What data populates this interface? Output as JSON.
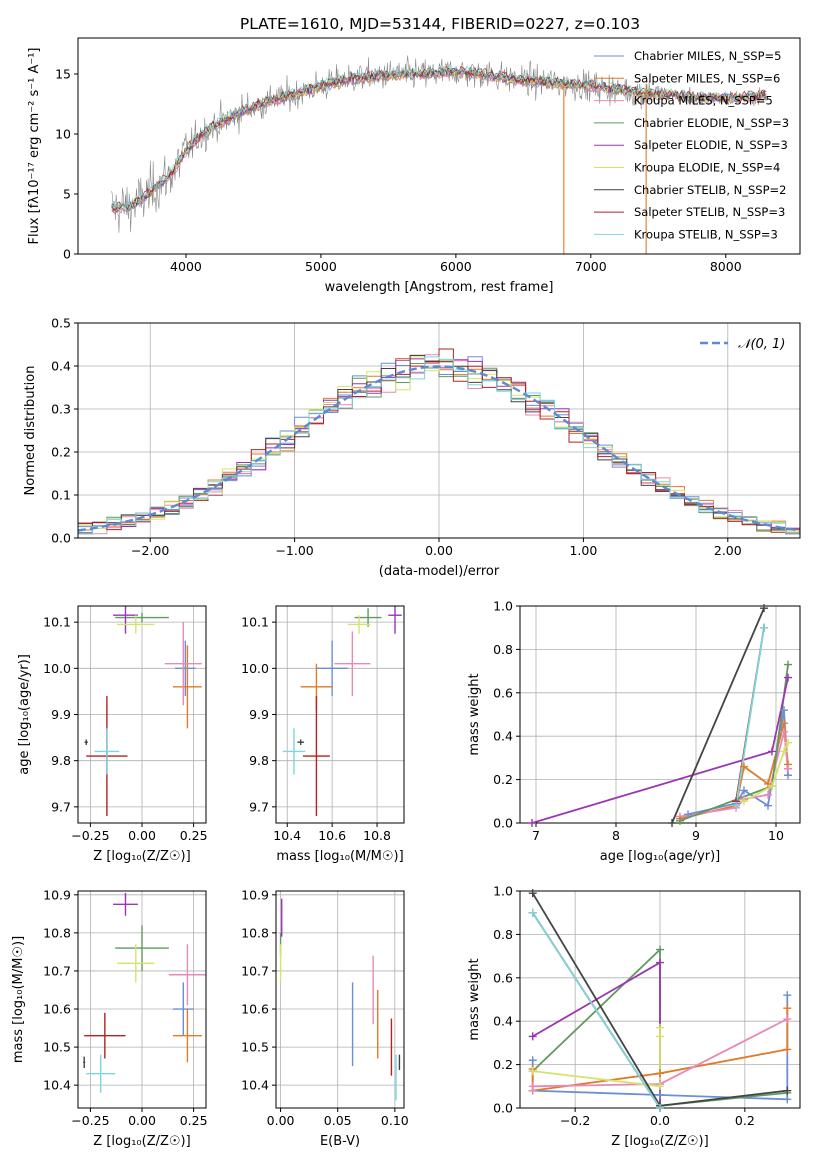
{
  "figure": {
    "title": "PLATE=1610, MJD=53144, FIBERID=0227, z=0.103"
  },
  "colors": {
    "chabrier_miles": "#6a8fd8",
    "salpeter_miles": "#e07b27",
    "kroupa_miles": "#e88ab8",
    "chabrier_elodie": "#5f9a5f",
    "salpeter_elodie": "#9b35b5",
    "kroupa_elodie": "#d6e36a",
    "chabrier_stelib": "#444444",
    "salpeter_stelib": "#b22222",
    "kroupa_stelib": "#7ad7dd",
    "data": "#888888",
    "gauss": "#5b8bd4",
    "grid": "#b0b0b0"
  },
  "chart_data": [
    {
      "id": "spectrum",
      "type": "line",
      "xlabel": "wavelength [Angstrom, rest frame]",
      "ylabel": "Flux [fλ10⁻¹⁷ erg cm⁻² s⁻¹ A⁻¹]",
      "xlim": [
        3200,
        8550
      ],
      "ylim": [
        0,
        18
      ],
      "xticks": [
        4000,
        5000,
        6000,
        7000,
        8000
      ],
      "yticks": [
        0,
        5,
        10,
        15
      ],
      "grid": false,
      "legend_position": "top-right",
      "continuum": {
        "x": [
          3450,
          3600,
          3700,
          3800,
          3900,
          4000,
          4100,
          4200,
          4300,
          4400,
          4500,
          4600,
          4800,
          5000,
          5200,
          5400,
          5600,
          5800,
          6000,
          6200,
          6400,
          6600,
          6800,
          7000,
          7200,
          7400,
          7600,
          7800,
          8000,
          8200,
          8300
        ],
        "y": [
          3.8,
          4.0,
          4.8,
          5.8,
          6.8,
          8.6,
          9.8,
          10.6,
          11.2,
          11.8,
          12.3,
          12.7,
          13.3,
          14.0,
          14.6,
          14.8,
          15.0,
          15.0,
          15.2,
          15.0,
          14.6,
          14.4,
          14.2,
          14.0,
          13.7,
          13.4,
          13.3,
          13.0,
          13.0,
          13.1,
          13.2
        ]
      },
      "series": [
        {
          "name": "Chabrier MILES, N_SSP=5",
          "color_key": "chabrier_miles"
        },
        {
          "name": "Salpeter MILES, N_SSP=6",
          "color_key": "salpeter_miles"
        },
        {
          "name": "Kroupa MILES, N_SSP=5",
          "color_key": "kroupa_miles"
        },
        {
          "name": "Chabrier ELODIE, N_SSP=3",
          "color_key": "chabrier_elodie"
        },
        {
          "name": "Salpeter ELODIE, N_SSP=3",
          "color_key": "salpeter_elodie"
        },
        {
          "name": "Kroupa ELODIE, N_SSP=4",
          "color_key": "kroupa_elodie"
        },
        {
          "name": "Chabrier STELIB, N_SSP=2",
          "color_key": "chabrier_stelib"
        },
        {
          "name": "Salpeter STELIB, N_SSP=3",
          "color_key": "salpeter_stelib"
        },
        {
          "name": "Kroupa STELIB, N_SSP=3",
          "color_key": "kroupa_stelib"
        }
      ]
    },
    {
      "id": "residuals",
      "type": "bar",
      "xlabel": "(data-model)/error",
      "ylabel": "Normed distribution",
      "xlim": [
        -2.5,
        2.5
      ],
      "ylim": [
        0,
        0.5
      ],
      "xticks": [
        -2,
        -1,
        0,
        1,
        2
      ],
      "yticks": [
        0.0,
        0.1,
        0.2,
        0.3,
        0.4,
        0.5
      ],
      "grid": true,
      "legend": "𝒩(0, 1)",
      "legend_position": "top-right",
      "bin_width": 0.1
    },
    {
      "id": "age_vs_Z",
      "type": "scatter",
      "xlabel": "Z [log₁₀(Z/Z☉)]",
      "ylabel": "age  [log₁₀(age/yr)]",
      "xlim": [
        -0.31,
        0.31
      ],
      "ylim": [
        9.665,
        10.135
      ],
      "xticks": [
        -0.25,
        0.0,
        0.25
      ],
      "yticks": [
        9.7,
        9.8,
        9.9,
        10.0,
        10.1
      ],
      "grid": true,
      "points": [
        {
          "c": "chabrier_miles",
          "x": 0.21,
          "y": 10.0,
          "xe": 0.05,
          "ye": 0.06
        },
        {
          "c": "salpeter_miles",
          "x": 0.22,
          "y": 9.96,
          "xe": 0.07,
          "ye": 0.09
        },
        {
          "c": "kroupa_miles",
          "x": 0.2,
          "y": 10.01,
          "xe": 0.09,
          "ye": 0.09
        },
        {
          "c": "chabrier_elodie",
          "x": 0.0,
          "y": 10.11,
          "xe": 0.13,
          "ye": 0.01
        },
        {
          "c": "salpeter_elodie",
          "x": -0.08,
          "y": 10.115,
          "xe": 0.06,
          "ye": 0.04
        },
        {
          "c": "kroupa_elodie",
          "x": -0.03,
          "y": 10.095,
          "xe": 0.09,
          "ye": 0.02
        },
        {
          "c": "chabrier_stelib",
          "x": -0.27,
          "y": 9.84,
          "xe": 0.008,
          "ye": 0.006
        },
        {
          "c": "salpeter_stelib",
          "x": -0.17,
          "y": 9.81,
          "xe": 0.1,
          "ye": 0.13
        },
        {
          "c": "kroupa_stelib",
          "x": -0.17,
          "y": 9.82,
          "xe": 0.06,
          "ye": 0.05
        }
      ]
    },
    {
      "id": "age_vs_mass",
      "type": "scatter",
      "xlabel": "mass [log₁₀(M/M☉)]",
      "ylabel": "",
      "xlim": [
        10.35,
        10.92
      ],
      "ylim": [
        9.665,
        10.135
      ],
      "xticks": [
        10.4,
        10.6,
        10.8
      ],
      "yticks": [
        9.7,
        9.8,
        9.9,
        10.0,
        10.1
      ],
      "grid": true,
      "points": [
        {
          "c": "chabrier_miles",
          "x": 10.6,
          "y": 10.0,
          "xe": 0.07,
          "ye": 0.06
        },
        {
          "c": "salpeter_miles",
          "x": 10.53,
          "y": 9.96,
          "xe": 0.07,
          "ye": 0.05
        },
        {
          "c": "kroupa_miles",
          "x": 10.69,
          "y": 10.01,
          "xe": 0.08,
          "ye": 0.07
        },
        {
          "c": "chabrier_elodie",
          "x": 10.76,
          "y": 10.11,
          "xe": 0.06,
          "ye": 0.02
        },
        {
          "c": "salpeter_elodie",
          "x": 10.88,
          "y": 10.115,
          "xe": 0.03,
          "ye": 0.04
        },
        {
          "c": "kroupa_elodie",
          "x": 10.72,
          "y": 10.095,
          "xe": 0.05,
          "ye": 0.02
        },
        {
          "c": "chabrier_stelib",
          "x": 10.46,
          "y": 9.84,
          "xe": 0.015,
          "ye": 0.006
        },
        {
          "c": "salpeter_stelib",
          "x": 10.53,
          "y": 9.81,
          "xe": 0.06,
          "ye": 0.13
        },
        {
          "c": "kroupa_stelib",
          "x": 10.43,
          "y": 9.82,
          "xe": 0.05,
          "ye": 0.05
        }
      ]
    },
    {
      "id": "mass_vs_Z",
      "type": "scatter",
      "xlabel": "Z [log₁₀(Z/Z☉)]",
      "ylabel": "mass [log₁₀(M/M☉)]",
      "xlim": [
        -0.31,
        0.31
      ],
      "ylim": [
        10.34,
        10.91
      ],
      "xticks": [
        -0.25,
        0.0,
        0.25
      ],
      "yticks": [
        10.4,
        10.5,
        10.6,
        10.7,
        10.8,
        10.9
      ],
      "grid": true,
      "points": [
        {
          "c": "chabrier_miles",
          "x": 0.2,
          "y": 10.6,
          "xe": 0.05,
          "ye": 0.07
        },
        {
          "c": "salpeter_miles",
          "x": 0.22,
          "y": 10.53,
          "xe": 0.07,
          "ye": 0.07
        },
        {
          "c": "kroupa_miles",
          "x": 0.22,
          "y": 10.69,
          "xe": 0.09,
          "ye": 0.08
        },
        {
          "c": "chabrier_elodie",
          "x": 0.0,
          "y": 10.76,
          "xe": 0.13,
          "ye": 0.06
        },
        {
          "c": "salpeter_elodie",
          "x": -0.08,
          "y": 10.875,
          "xe": 0.06,
          "ye": 0.03
        },
        {
          "c": "kroupa_elodie",
          "x": -0.03,
          "y": 10.72,
          "xe": 0.09,
          "ye": 0.05
        },
        {
          "c": "chabrier_stelib",
          "x": -0.28,
          "y": 10.46,
          "xe": 0.005,
          "ye": 0.015
        },
        {
          "c": "salpeter_stelib",
          "x": -0.18,
          "y": 10.53,
          "xe": 0.1,
          "ye": 0.06
        },
        {
          "c": "kroupa_stelib",
          "x": -0.2,
          "y": 10.43,
          "xe": 0.07,
          "ye": 0.05
        }
      ]
    },
    {
      "id": "mass_vs_ebv",
      "type": "scatter",
      "xlabel": "E(B-V)",
      "ylabel": "",
      "xlim": [
        -0.004,
        0.108
      ],
      "ylim": [
        10.34,
        10.91
      ],
      "xticks": [
        0.0,
        0.05,
        0.1
      ],
      "yticks": [
        10.4,
        10.5,
        10.6,
        10.7,
        10.8,
        10.9
      ],
      "grid": true,
      "points": [
        {
          "c": "chabrier_miles",
          "x": 0.063,
          "y": 10.56,
          "xe": 0,
          "ye": 0.11
        },
        {
          "c": "salpeter_miles",
          "x": 0.085,
          "y": 10.56,
          "xe": 0,
          "ye": 0.09
        },
        {
          "c": "kroupa_miles",
          "x": 0.081,
          "y": 10.65,
          "xe": 0,
          "ye": 0.09
        },
        {
          "c": "chabrier_elodie",
          "x": 0.0,
          "y": 10.77,
          "xe": 0,
          "ye": 0.03
        },
        {
          "c": "salpeter_elodie",
          "x": 0.001,
          "y": 10.84,
          "xe": 0,
          "ye": 0.05
        },
        {
          "c": "kroupa_elodie",
          "x": 0.0,
          "y": 10.72,
          "xe": 0,
          "ye": 0.05
        },
        {
          "c": "chabrier_stelib",
          "x": 0.104,
          "y": 10.46,
          "xe": 0,
          "ye": 0.02
        },
        {
          "c": "salpeter_stelib",
          "x": 0.097,
          "y": 10.5,
          "xe": 0,
          "ye": 0.075
        },
        {
          "c": "kroupa_stelib",
          "x": 0.101,
          "y": 10.42,
          "xe": 0,
          "ye": 0.06
        }
      ]
    },
    {
      "id": "weight_vs_age",
      "type": "line",
      "xlabel": "age  [log₁₀(age/yr)]",
      "ylabel": "mass weight",
      "xlim": [
        6.8,
        10.3
      ],
      "ylim": [
        0,
        1.0
      ],
      "xticks": [
        7,
        8,
        9,
        10
      ],
      "yticks": [
        0.0,
        0.2,
        0.4,
        0.6,
        0.8,
        1.0
      ],
      "grid": true,
      "series": [
        {
          "c": "chabrier_miles",
          "x": [
            8.9,
            9.5,
            9.6,
            9.9,
            10.1,
            10.15
          ],
          "y": [
            0.04,
            0.09,
            0.15,
            0.08,
            0.52,
            0.22
          ]
        },
        {
          "c": "salpeter_miles",
          "x": [
            8.8,
            9.5,
            9.6,
            9.9,
            10.1,
            10.15
          ],
          "y": [
            0.02,
            0.08,
            0.26,
            0.18,
            0.46,
            0.27
          ]
        },
        {
          "c": "kroupa_miles",
          "x": [
            8.8,
            9.5,
            9.6,
            9.9,
            10.1,
            10.15
          ],
          "y": [
            0.03,
            0.07,
            0.11,
            0.13,
            0.42,
            0.25
          ]
        },
        {
          "c": "chabrier_elodie",
          "x": [
            8.8,
            9.95,
            10.15
          ],
          "y": [
            0.01,
            0.17,
            0.73
          ]
        },
        {
          "c": "salpeter_elodie",
          "x": [
            6.95,
            9.95,
            10.15
          ],
          "y": [
            0.0,
            0.33,
            0.67
          ]
        },
        {
          "c": "kroupa_elodie",
          "x": [
            9.6,
            9.95,
            10.1,
            10.15
          ],
          "y": [
            0.1,
            0.17,
            0.33,
            0.37
          ]
        },
        {
          "c": "chabrier_stelib",
          "x": [
            8.7,
            9.85
          ],
          "y": [
            0.0,
            0.99
          ]
        },
        {
          "c": "salpeter_stelib",
          "x": [
            9.5,
            9.85
          ],
          "y": [
            0.1,
            0.9
          ]
        },
        {
          "c": "kroupa_stelib",
          "x": [
            9.5,
            9.85
          ],
          "y": [
            0.08,
            0.9
          ]
        }
      ]
    },
    {
      "id": "weight_vs_Z",
      "type": "line",
      "xlabel": "Z [log₁₀(Z/Z☉)]",
      "ylabel": "mass weight",
      "xlim": [
        -0.33,
        0.33
      ],
      "ylim": [
        0,
        1.0
      ],
      "xticks": [
        -0.2,
        0.0,
        0.2
      ],
      "yticks": [
        0.0,
        0.2,
        0.4,
        0.6,
        0.8,
        1.0
      ],
      "grid": true,
      "series": [
        {
          "c": "chabrier_miles",
          "x": [
            0.3,
            0.3,
            0.0,
            -0.3,
            -0.3
          ],
          "y": [
            0.52,
            0.04,
            0.06,
            0.08,
            0.22
          ]
        },
        {
          "c": "salpeter_miles",
          "x": [
            0.3,
            0.3,
            0.0,
            -0.3,
            -0.3
          ],
          "y": [
            0.46,
            0.27,
            0.16,
            0.08,
            0.18
          ]
        },
        {
          "c": "kroupa_miles",
          "x": [
            0.3,
            0.0,
            -0.3,
            -0.3
          ],
          "y": [
            0.41,
            0.11,
            0.1,
            0.08
          ]
        },
        {
          "c": "chabrier_elodie",
          "x": [
            -0.3,
            0.0,
            0.0,
            0.3
          ],
          "y": [
            0.17,
            0.73,
            0.01,
            0.07
          ]
        },
        {
          "c": "salpeter_elodie",
          "x": [
            -0.3,
            0.0,
            0.0
          ],
          "y": [
            0.33,
            0.67,
            0.0
          ]
        },
        {
          "c": "kroupa_elodie",
          "x": [
            -0.3,
            0.0,
            0.0,
            0.0
          ],
          "y": [
            0.17,
            0.1,
            0.33,
            0.37
          ]
        },
        {
          "c": "chabrier_stelib",
          "x": [
            -0.3,
            0.0,
            0.3
          ],
          "y": [
            0.99,
            0.01,
            0.08
          ]
        },
        {
          "c": "salpeter_stelib",
          "x": [
            -0.3,
            0.0
          ],
          "y": [
            0.9,
            0.0
          ]
        },
        {
          "c": "kroupa_stelib",
          "x": [
            -0.3,
            0.0
          ],
          "y": [
            0.9,
            0.0
          ]
        }
      ]
    }
  ]
}
